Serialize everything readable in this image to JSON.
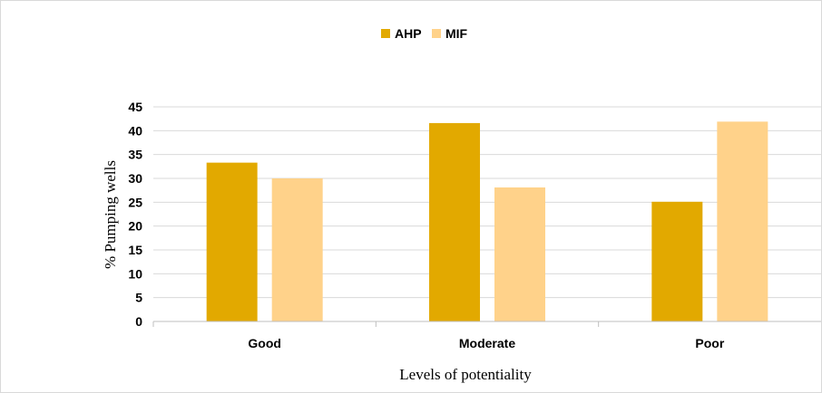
{
  "chart_data": {
    "type": "bar",
    "categories": [
      "Good",
      "Moderate",
      "Poor"
    ],
    "series": [
      {
        "name": "AHP",
        "values": [
          33.3,
          41.6,
          25.1
        ],
        "color": "#E2A900"
      },
      {
        "name": "MIF",
        "values": [
          30.0,
          28.1,
          41.9
        ],
        "color": "#FFD28A"
      }
    ],
    "xlabel": "Levels of potentiality",
    "ylabel": "% Pumping wells",
    "ylim": [
      0,
      45
    ],
    "yticks": [
      0,
      5,
      10,
      15,
      20,
      25,
      30,
      35,
      40,
      45
    ],
    "grid": true,
    "legend_position": "top-center"
  }
}
